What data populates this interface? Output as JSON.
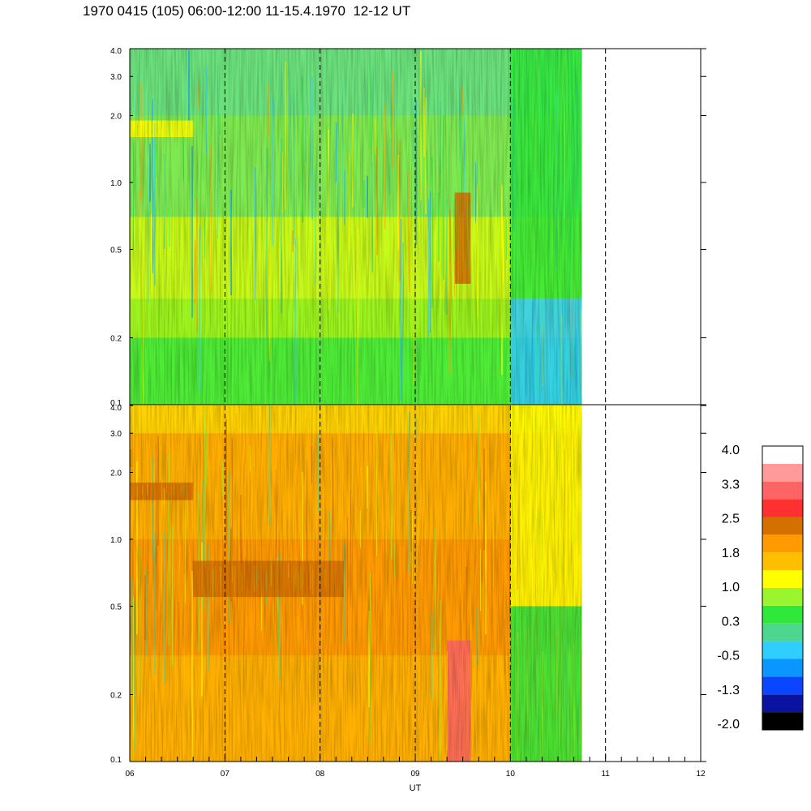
{
  "title": "1970 0415 (105) 06:00-12:00 11-15.4.1970  12-12 UT",
  "colors": {
    "palette": [
      "#000000",
      "#0a12a0",
      "#0a46ff",
      "#0a96ff",
      "#30cdff",
      "#4cd68e",
      "#2ee83a",
      "#9af52e",
      "#ffff00",
      "#ffbf00",
      "#ff9a00",
      "#d47000",
      "#ff3030",
      "#ff6464",
      "#ff9a9a",
      "#ffffff"
    ]
  },
  "chart_data": {
    "type": "heatmap",
    "panels": [
      {
        "name": "",
        "y_scale": "log",
        "ylim": [
          0.1,
          4.0
        ],
        "ytick_labels": [
          "4.0",
          "3.0",
          "2.0",
          "1.0",
          "0.5",
          "0.2",
          "0.1"
        ],
        "ytick_values": [
          4.0,
          3.0,
          2.0,
          1.0,
          0.5,
          0.2,
          0.1
        ],
        "dominant_level": "0.3 to 1.0",
        "features": [
          {
            "time": "06:00-06:40",
            "y_range": [
              1.6,
              1.9
            ],
            "level": 1.0
          },
          {
            "time": "09:25-09:35",
            "y_range": [
              0.35,
              0.9
            ],
            "level": 2.5
          },
          {
            "time": "10:00-10:45",
            "y_range": [
              0.1,
              0.3
            ],
            "level": -0.5
          },
          {
            "time": "10:00-10:45",
            "y_range": [
              0.3,
              4.0
            ],
            "level": 0.3
          }
        ]
      },
      {
        "name": "",
        "y_scale": "log",
        "ylim": [
          0.1,
          4.0
        ],
        "ytick_labels": [
          "4.0",
          "3.0",
          "2.0",
          "1.0",
          "0.5",
          "0.2",
          "0.1"
        ],
        "ytick_values": [
          4.0,
          3.0,
          2.0,
          1.0,
          0.5,
          0.2,
          0.1
        ],
        "dominant_level": "1.8 to 2.5",
        "features": [
          {
            "time": "06:00-06:40",
            "y_range": [
              1.5,
              1.8
            ],
            "level": 2.5
          },
          {
            "time": "06:40-08:15",
            "y_range": [
              0.55,
              0.8
            ],
            "level": 2.5
          },
          {
            "time": "09:20-09:35",
            "y_range": [
              0.1,
              0.35
            ],
            "level": 3.0
          },
          {
            "time": "10:00-10:45",
            "y_range": [
              0.1,
              0.5
            ],
            "level": 0.3
          },
          {
            "time": "10:00-10:45",
            "y_range": [
              0.5,
              4.0
            ],
            "level": 1.0
          }
        ]
      }
    ],
    "x_tick_labels": [
      "06",
      "07",
      "08",
      "09",
      "10",
      "11",
      "12"
    ],
    "xlim_hours": [
      6,
      12
    ],
    "data_end_hour": 10.75,
    "xlabel": "UT",
    "dashed_hours": [
      7,
      8,
      9,
      10,
      11
    ],
    "colorbar": {
      "labels": [
        "4.0",
        "3.3",
        "2.5",
        "1.8",
        "1.0",
        "0.3",
        "-0.5",
        "-1.3",
        "-2.0"
      ],
      "levels": 16
    }
  }
}
